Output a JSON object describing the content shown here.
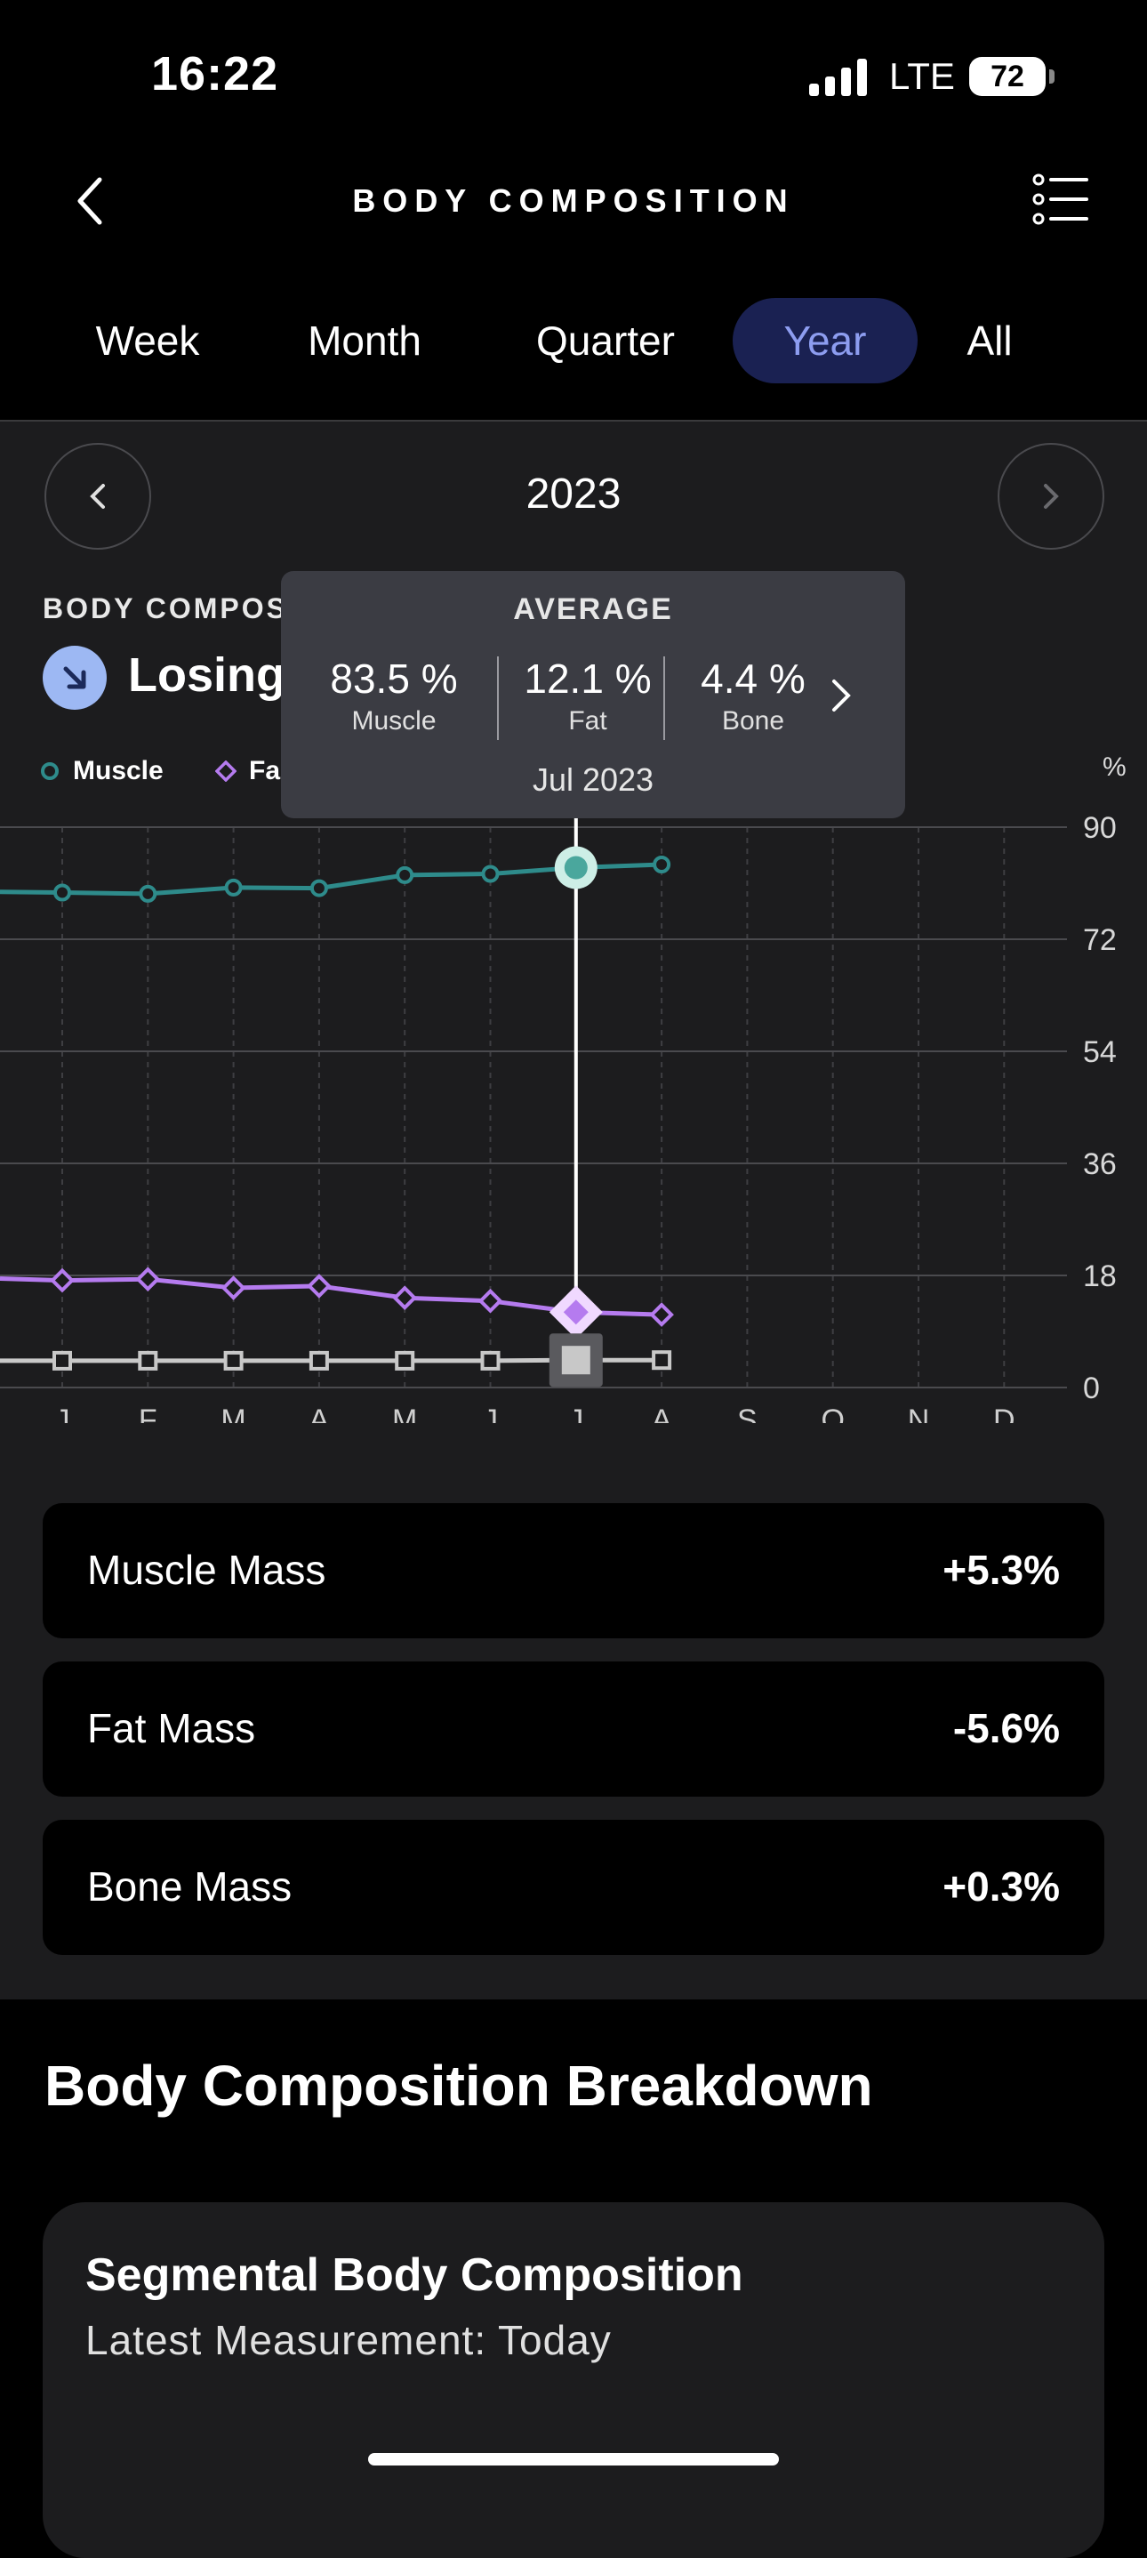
{
  "status_bar": {
    "time": "16:22",
    "network": "LTE",
    "battery": "72"
  },
  "header": {
    "title": "BODY COMPOSITION",
    "back_icon": "chevron-left-icon",
    "menu_icon": "list-icon"
  },
  "tabs": [
    {
      "label": "Week",
      "active": false
    },
    {
      "label": "Month",
      "active": false
    },
    {
      "label": "Quarter",
      "active": false
    },
    {
      "label": "Year",
      "active": true
    },
    {
      "label": "All",
      "active": false
    }
  ],
  "period": {
    "label": "2023",
    "prev_icon": "chevron-left-icon",
    "next_icon": "chevron-right-icon"
  },
  "summary": {
    "section_label": "BODY COMPOS",
    "trend_text": "Losing",
    "trend_icon": "arrow-down-right-icon"
  },
  "legend": [
    {
      "label": "Muscle",
      "color": "#2e8b8b"
    },
    {
      "label": "Fa",
      "color": "#b57bef"
    }
  ],
  "unit": "%",
  "tooltip": {
    "title": "AVERAGE",
    "items": [
      {
        "value": "83.5 %",
        "label": "Muscle"
      },
      {
        "value": "12.1 %",
        "label": "Fat"
      },
      {
        "value": "4.4 %",
        "label": "Bone"
      }
    ],
    "date": "Jul 2023",
    "arrow_icon": "chevron-right-icon"
  },
  "chart_data": {
    "type": "line",
    "categories": [
      "J",
      "F",
      "M",
      "A",
      "M",
      "J",
      "J",
      "A",
      "S",
      "O",
      "N",
      "D"
    ],
    "ylim": [
      0,
      90
    ],
    "y_ticks": [
      "0",
      "18",
      "36",
      "54",
      "72",
      "90"
    ],
    "grid": true,
    "selected_index": 6,
    "series": [
      {
        "name": "Muscle",
        "color": "#2e8b8b",
        "marker": "circle",
        "values": [
          79.5,
          79.3,
          80.3,
          80.2,
          82.3,
          82.5,
          83.5,
          84.0,
          null,
          null,
          null,
          null
        ],
        "start": 79.6
      },
      {
        "name": "Fat",
        "color": "#b57bef",
        "marker": "diamond",
        "values": [
          17.2,
          17.4,
          16.0,
          16.3,
          14.4,
          13.9,
          12.1,
          11.7,
          null,
          null,
          null,
          null
        ],
        "start": 17.5
      },
      {
        "name": "Bone",
        "color": "#c8c8c8",
        "marker": "square",
        "values": [
          4.3,
          4.3,
          4.3,
          4.3,
          4.3,
          4.3,
          4.4,
          4.4,
          null,
          null,
          null,
          null
        ],
        "start": 4.3
      }
    ]
  },
  "stats": [
    {
      "label": "Muscle Mass",
      "value": "+5.3%"
    },
    {
      "label": "Fat Mass",
      "value": "-5.6%"
    },
    {
      "label": "Bone Mass",
      "value": "+0.3%"
    }
  ],
  "breakdown": {
    "title": "Body Composition Breakdown",
    "card_title": "Segmental Body Composition",
    "card_subtitle": "Latest Measurement: Today"
  }
}
